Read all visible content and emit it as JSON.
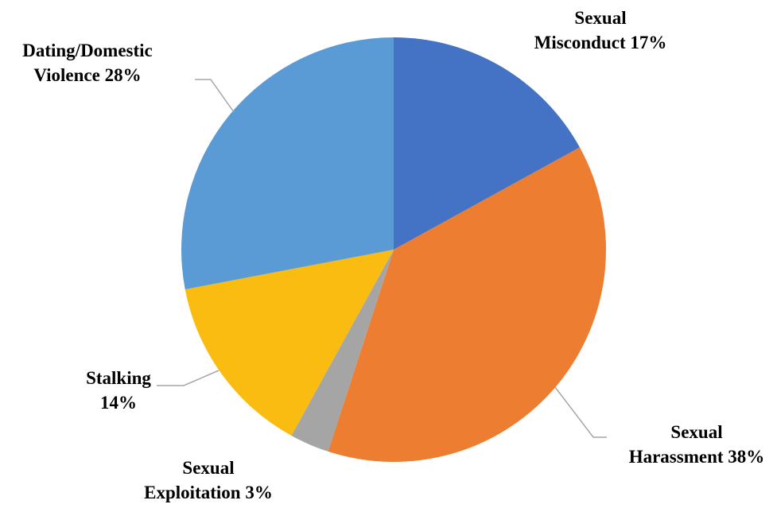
{
  "chart_data": {
    "type": "pie",
    "title": "",
    "start_angle_deg": 0,
    "direction": "clockwise",
    "slices": [
      {
        "label_lines": [
          "Sexual",
          "Misconduct 17%"
        ],
        "value": 17,
        "color": "#4472c4"
      },
      {
        "label_lines": [
          "Sexual",
          "Harassment 38%"
        ],
        "value": 38,
        "color": "#ed7d31"
      },
      {
        "label_lines": [
          "Sexual",
          "Exploitation 3%"
        ],
        "value": 3,
        "color": "#a5a5a5"
      },
      {
        "label_lines": [
          "Stalking",
          "14%"
        ],
        "value": 14,
        "color": "#fbbc12"
      },
      {
        "label_lines": [
          "Dating/Domestic",
          "Violence 28%"
        ],
        "value": 28,
        "color": "#5b9bd5"
      }
    ]
  }
}
